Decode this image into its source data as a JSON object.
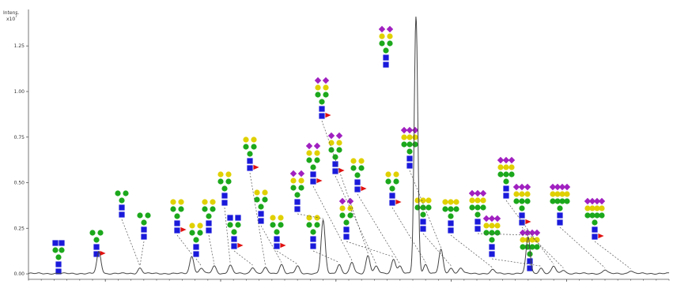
{
  "chart_data": {
    "type": "line",
    "ylabel_line1": "Intens.",
    "ylabel_line2": "x10",
    "ylabel_exp": "7",
    "y_ticks": [
      "0.00",
      "0.25",
      "0.50",
      "0.75",
      "1.00",
      "1.25"
    ],
    "ylim": [
      -0.03,
      1.45
    ],
    "xlim": [
      0,
      100
    ],
    "x_ticks_count": 6,
    "grid": false,
    "colors": {
      "trace": "#444444",
      "hexnac": "#1a1adb",
      "mannose": "#1ca81c",
      "galactose": "#e0d000",
      "sialic": "#a020c0",
      "fucose": "#e01010",
      "leader": "#555555"
    },
    "peaks": [
      {
        "x": 11,
        "y": 0.12,
        "glycan": "hex"
      },
      {
        "x": 17.4,
        "y": 0.03,
        "glycan": "core"
      },
      {
        "x": 25.5,
        "y": 0.095,
        "glycan": "a"
      },
      {
        "x": 27.0,
        "y": 0.03,
        "glycan": "b"
      },
      {
        "x": 29.0,
        "y": 0.04,
        "glycan": "c"
      },
      {
        "x": 31.5,
        "y": 0.045,
        "glycan": "d"
      },
      {
        "x": 35.0,
        "y": 0.035,
        "glycan": "e"
      },
      {
        "x": 37.0,
        "y": 0.03,
        "glycan": "f"
      },
      {
        "x": 39.5,
        "y": 0.05,
        "glycan": "g"
      },
      {
        "x": 42.0,
        "y": 0.04,
        "glycan": "h"
      },
      {
        "x": 46.0,
        "y": 0.29,
        "glycan": "i"
      },
      {
        "x": 48.5,
        "y": 0.05,
        "glycan": "j"
      },
      {
        "x": 50.5,
        "y": 0.06,
        "glycan": "k"
      },
      {
        "x": 53.0,
        "y": 0.1,
        "glycan": "l"
      },
      {
        "x": 54.3,
        "y": 0.04,
        "glycan": "m"
      },
      {
        "x": 57.0,
        "y": 0.08,
        "glycan": "n"
      },
      {
        "x": 58.0,
        "y": 0.04,
        "glycan": "o"
      },
      {
        "x": 60.5,
        "y": 1.41,
        "glycan": "p"
      },
      {
        "x": 62.0,
        "y": 0.05,
        "glycan": "q"
      },
      {
        "x": 64.4,
        "y": 0.13,
        "glycan": "r"
      },
      {
        "x": 66.0,
        "y": 0.03,
        "glycan": "s"
      },
      {
        "x": 67.5,
        "y": 0.03,
        "glycan": "t"
      },
      {
        "x": 72.5,
        "y": 0.02,
        "glycan": "u"
      },
      {
        "x": 78.0,
        "y": 0.2,
        "glycan": "v"
      },
      {
        "x": 80.0,
        "y": 0.03,
        "glycan": "w"
      },
      {
        "x": 82.0,
        "y": 0.04,
        "glycan": "x"
      },
      {
        "x": 83.5,
        "y": 0.02,
        "glycan": "y"
      },
      {
        "x": 90.0,
        "y": 0.02,
        "glycan": "z"
      },
      {
        "x": 94.0,
        "y": 0.015,
        "glycan": "aa"
      }
    ]
  }
}
